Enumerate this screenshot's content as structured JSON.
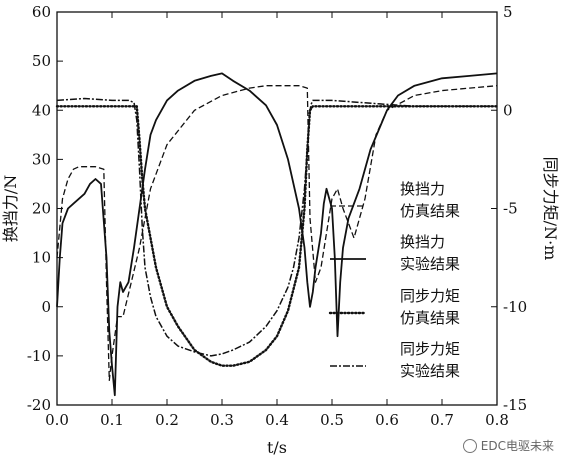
{
  "chart_data": {
    "type": "line",
    "xlabel": "t/s",
    "ylabel_left": "换挡力/N",
    "ylabel_right": "同步力矩/N·m",
    "xlim": [
      0.0,
      0.8
    ],
    "ylim_left": [
      -20,
      60
    ],
    "ylim_right": [
      -15,
      5
    ],
    "x_ticks": [
      "0.0",
      "0.1",
      "0.2",
      "0.3",
      "0.4",
      "0.5",
      "0.6",
      "0.7",
      "0.8"
    ],
    "y_ticks_left": [
      "-20",
      "-10",
      "0",
      "10",
      "20",
      "30",
      "40",
      "50",
      "60"
    ],
    "y_ticks_right": [
      "-15",
      "-10",
      "-5",
      "0",
      "5"
    ],
    "grid": false,
    "legend_position": "right-middle",
    "series": [
      {
        "name": "换挡力仿真结果",
        "name_lines": [
          "换挡力",
          "仿真结果"
        ],
        "axis": "left",
        "style": "dashed",
        "x": [
          0.0,
          0.01,
          0.02,
          0.03,
          0.04,
          0.05,
          0.07,
          0.085,
          0.09,
          0.095,
          0.1,
          0.11,
          0.12,
          0.135,
          0.15,
          0.17,
          0.2,
          0.25,
          0.3,
          0.35,
          0.38,
          0.4,
          0.42,
          0.44,
          0.455,
          0.46,
          0.47,
          0.48,
          0.49,
          0.5,
          0.51,
          0.52,
          0.54,
          0.56,
          0.58,
          0.6,
          0.65,
          0.7,
          0.75,
          0.8
        ],
        "y": [
          10,
          22,
          26,
          28,
          28.5,
          28.5,
          28.5,
          28,
          5,
          -15,
          -10,
          -2,
          -2,
          5,
          12,
          24,
          33,
          40,
          43,
          44.5,
          45,
          45,
          45,
          45,
          44.5,
          18,
          5,
          8,
          15,
          22,
          24,
          20,
          14,
          22,
          35,
          40,
          43,
          44,
          44.5,
          45
        ]
      },
      {
        "name": "换挡力实验结果",
        "name_lines": [
          "换挡力",
          "实验结果"
        ],
        "axis": "left",
        "style": "solid",
        "x": [
          0.0,
          0.005,
          0.01,
          0.02,
          0.03,
          0.04,
          0.05,
          0.06,
          0.07,
          0.08,
          0.09,
          0.095,
          0.1,
          0.105,
          0.11,
          0.115,
          0.12,
          0.13,
          0.14,
          0.15,
          0.16,
          0.17,
          0.18,
          0.2,
          0.22,
          0.25,
          0.28,
          0.3,
          0.32,
          0.35,
          0.38,
          0.4,
          0.42,
          0.44,
          0.45,
          0.455,
          0.46,
          0.465,
          0.47,
          0.48,
          0.485,
          0.49,
          0.5,
          0.505,
          0.51,
          0.515,
          0.52,
          0.53,
          0.55,
          0.57,
          0.6,
          0.62,
          0.65,
          0.7,
          0.75,
          0.8
        ],
        "y": [
          0,
          10,
          17,
          20,
          21,
          22,
          23,
          25,
          26,
          25,
          10,
          -5,
          -12,
          -18,
          0,
          5,
          3,
          5,
          12,
          20,
          28,
          35,
          38,
          42,
          44,
          46,
          47,
          47.5,
          46,
          44,
          41,
          37,
          30,
          20,
          12,
          5,
          0,
          3,
          8,
          15,
          21,
          24,
          20,
          10,
          -6,
          5,
          12,
          18,
          24,
          32,
          40,
          43,
          45,
          46.5,
          47,
          47.5
        ]
      },
      {
        "name": "同步力矩仿真结果",
        "name_lines": [
          "同步力矩",
          "仿真结果"
        ],
        "axis": "right",
        "style": "dotted",
        "x": [
          0.0,
          0.05,
          0.1,
          0.13,
          0.145,
          0.15,
          0.155,
          0.16,
          0.17,
          0.18,
          0.2,
          0.22,
          0.25,
          0.28,
          0.3,
          0.32,
          0.35,
          0.38,
          0.4,
          0.42,
          0.44,
          0.45,
          0.455,
          0.46,
          0.465,
          0.5,
          0.6,
          0.7,
          0.8
        ],
        "y": [
          0.2,
          0.2,
          0.2,
          0.2,
          0.2,
          -1.5,
          -3.5,
          -5,
          -6.5,
          -8,
          -10,
          -11,
          -12.2,
          -12.8,
          -13,
          -13,
          -12.8,
          -12.2,
          -11.5,
          -10.2,
          -8,
          -5,
          -2,
          0,
          0.2,
          0.2,
          0.2,
          0.2,
          0.2
        ]
      },
      {
        "name": "同步力矩实验结果",
        "name_lines": [
          "同步力矩",
          "实验结果"
        ],
        "axis": "right",
        "style": "dash-dot",
        "x": [
          0.0,
          0.05,
          0.1,
          0.13,
          0.14,
          0.145,
          0.15,
          0.155,
          0.16,
          0.17,
          0.18,
          0.2,
          0.22,
          0.25,
          0.28,
          0.3,
          0.32,
          0.35,
          0.38,
          0.4,
          0.42,
          0.43,
          0.44,
          0.45,
          0.455,
          0.46,
          0.462,
          0.465,
          0.47,
          0.5,
          0.55,
          0.6,
          0.65,
          0.7,
          0.75,
          0.8
        ],
        "y": [
          0.5,
          0.6,
          0.5,
          0.5,
          0.4,
          -0.5,
          -3,
          -6,
          -8,
          -9.5,
          -10.5,
          -11.5,
          -12,
          -12.3,
          -12.5,
          -12.4,
          -12.2,
          -11.8,
          -11,
          -10.2,
          -9,
          -8,
          -6.5,
          -4,
          -2,
          0,
          0.3,
          0.5,
          0.5,
          0.5,
          0.4,
          0.3,
          0.2,
          0.2,
          0.2,
          0.2
        ]
      }
    ]
  },
  "watermark": {
    "text": "EDC电驱未来",
    "icon": "wechat-bubble-icon"
  }
}
